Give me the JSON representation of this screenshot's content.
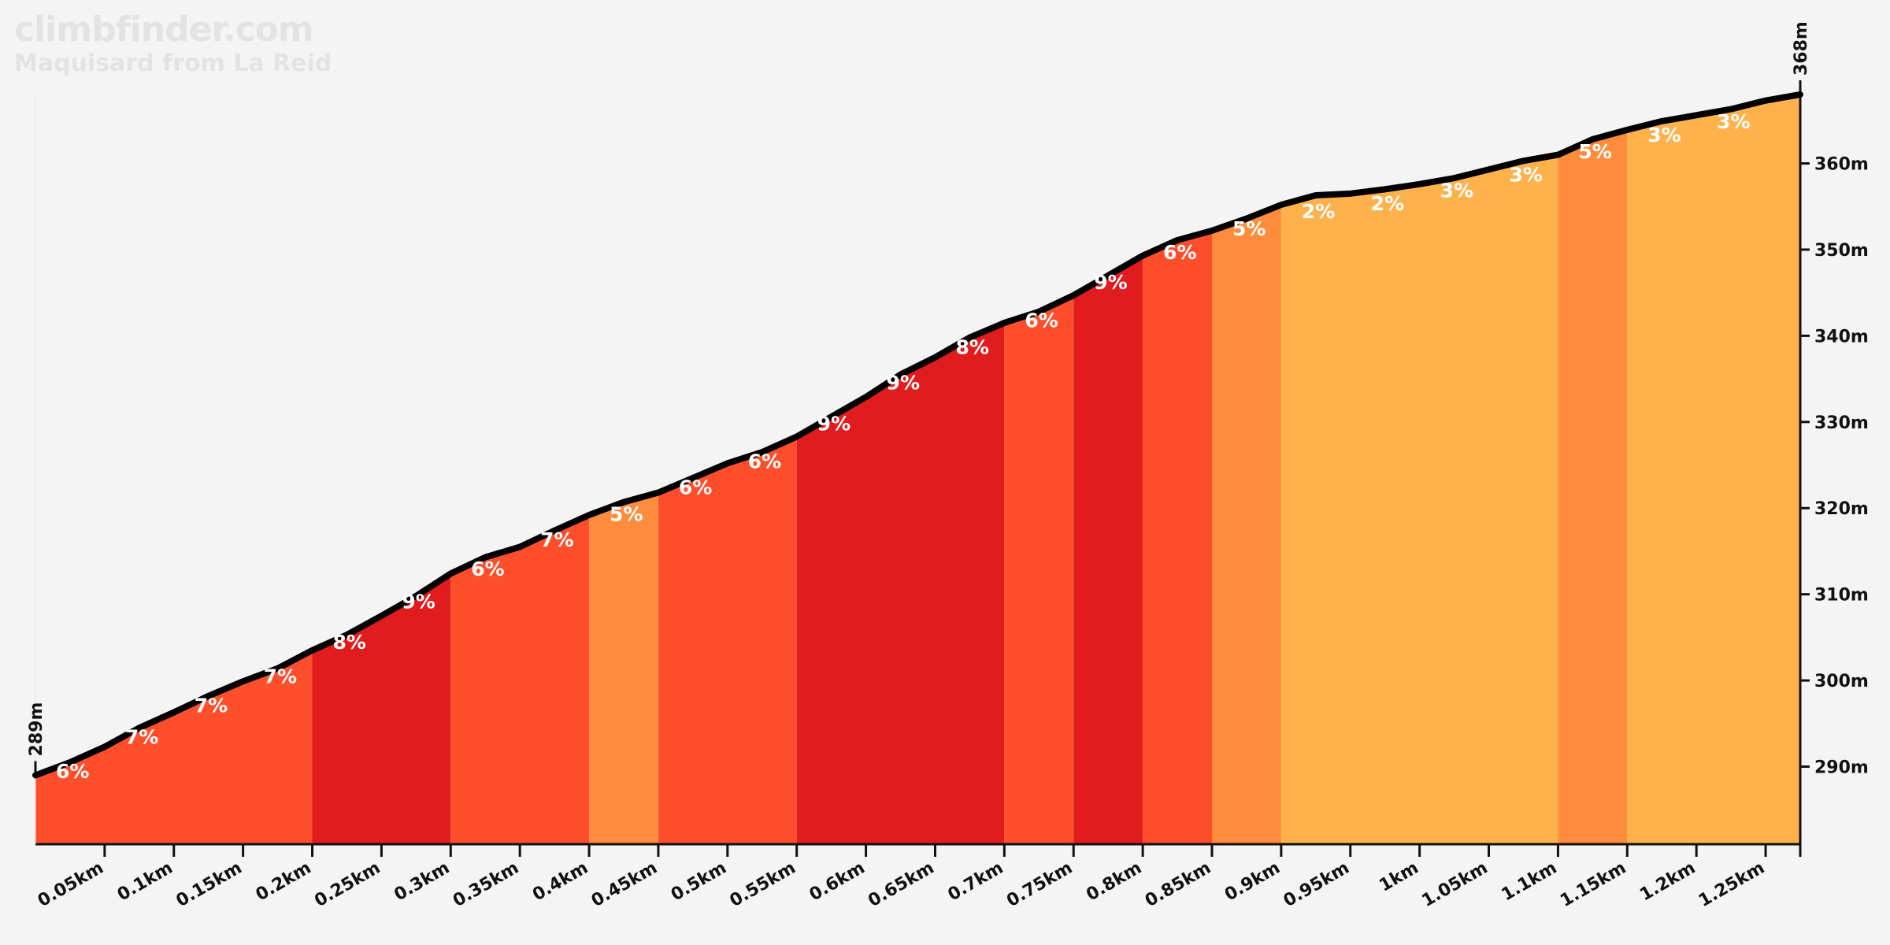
{
  "header": {
    "site": "climbfinder.com",
    "climb_name": "Maquisard from La Reid"
  },
  "chart_data": {
    "type": "area",
    "title": "",
    "xlabel": "",
    "ylabel": "",
    "x_unit": "km",
    "y_unit": "m",
    "xlim": [
      0,
      1.275
    ],
    "ylim": [
      281,
      368
    ],
    "x_ticks": [
      0.05,
      0.1,
      0.15,
      0.2,
      0.25,
      0.3,
      0.35,
      0.4,
      0.45,
      0.5,
      0.55,
      0.6,
      0.65,
      0.7,
      0.75,
      0.8,
      0.85,
      0.9,
      0.95,
      1.0,
      1.05,
      1.1,
      1.15,
      1.2,
      1.25
    ],
    "x_tick_labels": [
      "0.05km",
      "0.1km",
      "0.15km",
      "0.2km",
      "0.25km",
      "0.3km",
      "0.35km",
      "0.4km",
      "0.45km",
      "0.5km",
      "0.55km",
      "0.6km",
      "0.65km",
      "0.7km",
      "0.75km",
      "0.8km",
      "0.85km",
      "0.9km",
      "0.95km",
      "1km",
      "1.05km",
      "1.1km",
      "1.15km",
      "1.2km",
      "1.25km"
    ],
    "y_ticks": [
      290,
      300,
      310,
      320,
      330,
      340,
      350,
      360
    ],
    "y_tick_labels": [
      "290m",
      "300m",
      "310m",
      "320m",
      "330m",
      "340m",
      "350m",
      "360m"
    ],
    "start_label": "289m",
    "end_label": "368m",
    "grid": false,
    "legend": "none",
    "profile": [
      [
        0,
        289
      ],
      [
        0.025,
        290.5
      ],
      [
        0.05,
        292.3
      ],
      [
        0.075,
        294.5
      ],
      [
        0.1,
        296.3
      ],
      [
        0.125,
        298.2
      ],
      [
        0.15,
        299.9
      ],
      [
        0.175,
        301.4
      ],
      [
        0.2,
        303.5
      ],
      [
        0.225,
        305.3
      ],
      [
        0.25,
        307.5
      ],
      [
        0.275,
        309.8
      ],
      [
        0.3,
        312.4
      ],
      [
        0.325,
        314.3
      ],
      [
        0.35,
        315.5
      ],
      [
        0.375,
        317.4
      ],
      [
        0.4,
        319.2
      ],
      [
        0.425,
        320.7
      ],
      [
        0.45,
        321.8
      ],
      [
        0.475,
        323.5
      ],
      [
        0.5,
        325.2
      ],
      [
        0.525,
        326.5
      ],
      [
        0.55,
        328.3
      ],
      [
        0.575,
        330.6
      ],
      [
        0.6,
        332.9
      ],
      [
        0.625,
        335.5
      ],
      [
        0.65,
        337.5
      ],
      [
        0.675,
        339.8
      ],
      [
        0.7,
        341.5
      ],
      [
        0.725,
        342.8
      ],
      [
        0.75,
        344.7
      ],
      [
        0.775,
        347.0
      ],
      [
        0.8,
        349.3
      ],
      [
        0.825,
        351.1
      ],
      [
        0.85,
        352.2
      ],
      [
        0.875,
        353.6
      ],
      [
        0.9,
        355.2
      ],
      [
        0.925,
        356.3
      ],
      [
        0.95,
        356.5
      ],
      [
        0.975,
        357.0
      ],
      [
        1.0,
        357.6
      ],
      [
        1.025,
        358.3
      ],
      [
        1.05,
        359.3
      ],
      [
        1.075,
        360.3
      ],
      [
        1.1,
        361.0
      ],
      [
        1.125,
        362.8
      ],
      [
        1.15,
        363.9
      ],
      [
        1.175,
        364.9
      ],
      [
        1.2,
        365.6
      ],
      [
        1.225,
        366.3
      ],
      [
        1.25,
        367.3
      ],
      [
        1.275,
        368
      ]
    ],
    "segments": [
      {
        "start": 0,
        "end": 0.2,
        "grade": "red"
      },
      {
        "start": 0.2,
        "end": 0.3,
        "grade": "darkred"
      },
      {
        "start": 0.3,
        "end": 0.4,
        "grade": "red"
      },
      {
        "start": 0.4,
        "end": 0.45,
        "grade": "orange"
      },
      {
        "start": 0.45,
        "end": 0.55,
        "grade": "red"
      },
      {
        "start": 0.55,
        "end": 0.7,
        "grade": "darkred"
      },
      {
        "start": 0.7,
        "end": 0.75,
        "grade": "red"
      },
      {
        "start": 0.75,
        "end": 0.8,
        "grade": "darkred"
      },
      {
        "start": 0.8,
        "end": 0.85,
        "grade": "red"
      },
      {
        "start": 0.85,
        "end": 0.9,
        "grade": "orange"
      },
      {
        "start": 0.9,
        "end": 1.1,
        "grade": "yellow"
      },
      {
        "start": 1.1,
        "end": 1.15,
        "grade": "orange"
      },
      {
        "start": 1.15,
        "end": 1.275,
        "grade": "yellow"
      }
    ],
    "colors": {
      "darkred": "#e01c1e",
      "red": "#ff4e2c",
      "orange": "#ff8c3d",
      "yellow": "#ffb24c",
      "line": "#000000",
      "axis": "#111111"
    },
    "segment_labels": [
      {
        "x": 0.0125,
        "label": "6%"
      },
      {
        "x": 0.0625,
        "label": "7%"
      },
      {
        "x": 0.1125,
        "label": "7%"
      },
      {
        "x": 0.1625,
        "label": "7%"
      },
      {
        "x": 0.2125,
        "label": "8%"
      },
      {
        "x": 0.2625,
        "label": "9%"
      },
      {
        "x": 0.3125,
        "label": "6%"
      },
      {
        "x": 0.3625,
        "label": "7%"
      },
      {
        "x": 0.4125,
        "label": "5%"
      },
      {
        "x": 0.4625,
        "label": "6%"
      },
      {
        "x": 0.5125,
        "label": "6%"
      },
      {
        "x": 0.5625,
        "label": "9%"
      },
      {
        "x": 0.6125,
        "label": "9%"
      },
      {
        "x": 0.6625,
        "label": "8%"
      },
      {
        "x": 0.7125,
        "label": "6%"
      },
      {
        "x": 0.7625,
        "label": "9%"
      },
      {
        "x": 0.8125,
        "label": "6%"
      },
      {
        "x": 0.8625,
        "label": "5%"
      },
      {
        "x": 0.9125,
        "label": "2%"
      },
      {
        "x": 0.9625,
        "label": "2%"
      },
      {
        "x": 1.0125,
        "label": "3%"
      },
      {
        "x": 1.0625,
        "label": "3%"
      },
      {
        "x": 1.1125,
        "label": "5%"
      },
      {
        "x": 1.1625,
        "label": "3%"
      },
      {
        "x": 1.2125,
        "label": "3%"
      }
    ]
  }
}
